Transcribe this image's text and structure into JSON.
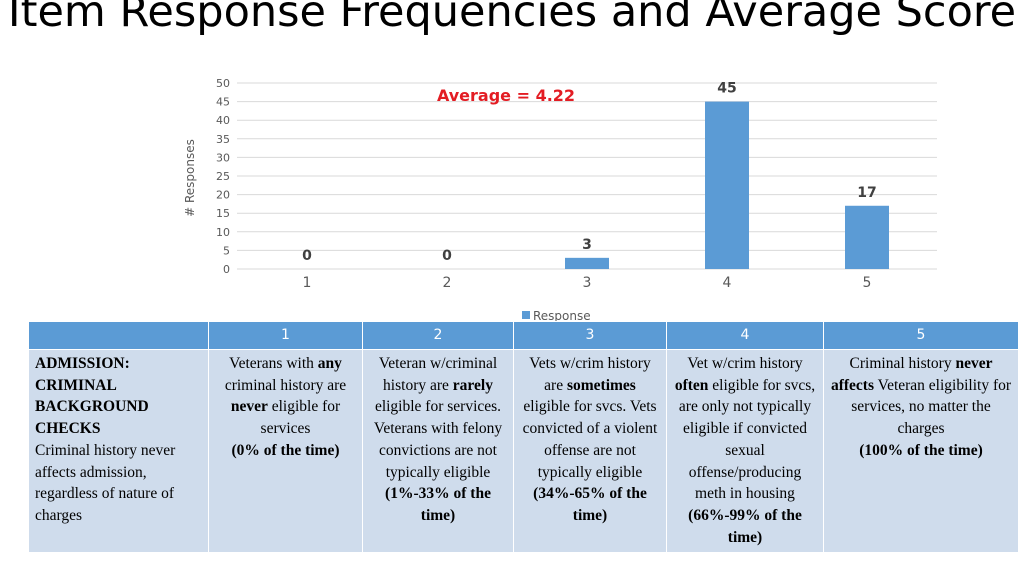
{
  "title": "Item Response Frequencies and Average Score",
  "chart_data": {
    "type": "bar",
    "categories": [
      "1",
      "2",
      "3",
      "4",
      "5"
    ],
    "series": [
      {
        "name": "Response",
        "values": [
          0,
          0,
          3,
          45,
          17
        ]
      }
    ],
    "data_labels": [
      "0",
      "0",
      "3",
      "45",
      "17"
    ],
    "ylabel": "# Responses",
    "xlabel": "",
    "ylim": [
      0,
      50
    ],
    "yticks": [
      0,
      5,
      10,
      15,
      20,
      25,
      30,
      35,
      40,
      45,
      50
    ],
    "annotation": "Average = 4.22",
    "grid": true,
    "legend_position": "bottom",
    "colors": {
      "bar": "#5b9bd5",
      "annotation": "#e31c23",
      "grid": "#d9d9d9",
      "axis_text": "#595959"
    }
  },
  "table": {
    "headers": [
      "",
      "1",
      "2",
      "3",
      "4",
      "5"
    ],
    "item": {
      "title": "ADMISSION: CRIMINAL BACKGROUND CHECKS",
      "text": "Criminal history never affects admission, regardless of nature of charges"
    },
    "cells": [
      {
        "pre": "Veterans with ",
        "b1": "any",
        "mid": " criminal history are ",
        "b2": "never",
        "post": " eligible for services",
        "pct": "(0% of the time)"
      },
      {
        "pre": "Veteran w/criminal history are ",
        "b1": "rarely",
        "mid": " eligible for services. Veterans with felony convictions are not typically eligible",
        "b2": "",
        "post": "",
        "pct": "(1%-33% of the time)"
      },
      {
        "pre": "Vets w/crim history are ",
        "b1": "sometimes",
        "mid": " eligible for svcs. Vets convicted of a violent offense are not typically eligible",
        "b2": "",
        "post": "",
        "pct": "(34%-65% of the time)"
      },
      {
        "pre": "Vet w/crim history ",
        "b1": "often",
        "mid": " eligible for svcs, are only not typically eligible if convicted sexual offense/producing meth in housing",
        "b2": "",
        "post": "",
        "pct": "(66%-99% of the time)"
      },
      {
        "pre": "Criminal history ",
        "b1": "never affects",
        "mid": " Veteran eligibility for services, no matter the charges",
        "b2": "",
        "post": "",
        "pct": "(100% of the time)"
      }
    ]
  }
}
